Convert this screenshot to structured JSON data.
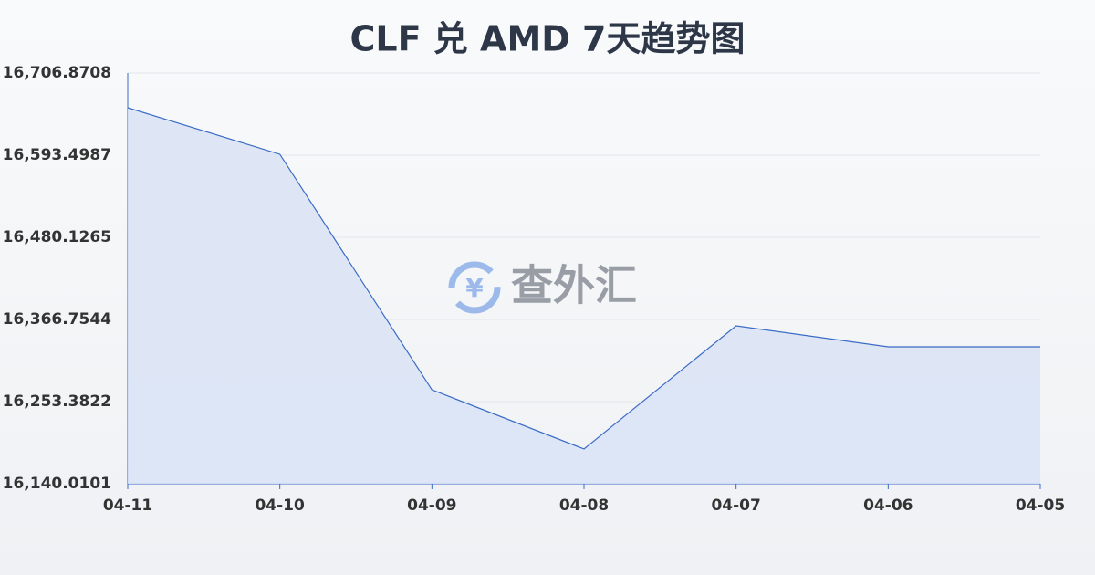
{
  "chart_data": {
    "type": "area",
    "title": "CLF 兑 AMD 7天趋势图",
    "watermark": "查外汇",
    "categories": [
      "04-11",
      "04-10",
      "04-09",
      "04-08",
      "04-07",
      "04-06",
      "04-05"
    ],
    "values": [
      16659.0,
      16594.8,
      16269.7,
      16187.9,
      16357.9,
      16329.0,
      16329.0
    ],
    "color": "#3a6bc6",
    "fill": "#d9e3f6",
    "ylim": [
      16140.0101,
      16706.8708
    ],
    "yticks": [
      {
        "value": 16140.0101,
        "label": "16,140.0101"
      },
      {
        "value": 16253.3822,
        "label": "16,253.3822"
      },
      {
        "value": 16366.7544,
        "label": "16,366.7544"
      },
      {
        "value": 16480.1265,
        "label": "16,480.1265"
      },
      {
        "value": 16593.4987,
        "label": "16,593.4987"
      },
      {
        "value": 16706.8708,
        "label": "16,706.8708"
      }
    ],
    "grid": true
  }
}
